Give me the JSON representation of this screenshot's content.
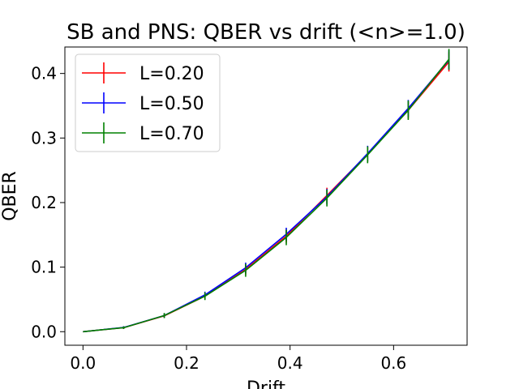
{
  "chart_data": {
    "type": "line",
    "title": "SB and PNS: QBER vs drift (<n>=1.0)",
    "xlabel": "Drift",
    "ylabel": "QBER",
    "xlim": [
      -0.035,
      0.742
    ],
    "ylim": [
      -0.021,
      0.441
    ],
    "xticks": [
      0.0,
      0.2,
      0.4,
      0.6
    ],
    "yticks": [
      0.0,
      0.1,
      0.2,
      0.3,
      0.4
    ],
    "xtick_labels": [
      "0.0",
      "0.2",
      "0.4",
      "0.6"
    ],
    "ytick_labels": [
      "0.0",
      "0.1",
      "0.2",
      "0.3",
      "0.4"
    ],
    "grid": false,
    "legend_position": "top-left",
    "x": [
      0.0,
      0.0785,
      0.157,
      0.2356,
      0.3142,
      0.3927,
      0.4712,
      0.5498,
      0.6283,
      0.7069
    ],
    "series": [
      {
        "name": "L=0.20",
        "color": "#ff0000",
        "values": [
          0.0,
          0.0062,
          0.0245,
          0.055,
          0.0965,
          0.148,
          0.211,
          0.275,
          0.343,
          0.418
        ],
        "errors": [
          0.0,
          0.002,
          0.003,
          0.005,
          0.008,
          0.01,
          0.012,
          0.012,
          0.013,
          0.015
        ]
      },
      {
        "name": "L=0.50",
        "color": "#0000ff",
        "values": [
          0.0,
          0.0065,
          0.025,
          0.057,
          0.099,
          0.151,
          0.209,
          0.276,
          0.346,
          0.421
        ],
        "errors": [
          0.0,
          0.002,
          0.003,
          0.005,
          0.008,
          0.01,
          0.012,
          0.012,
          0.013,
          0.015
        ]
      },
      {
        "name": "L=0.70",
        "color": "#008000",
        "values": [
          0.0,
          0.0062,
          0.025,
          0.055,
          0.095,
          0.146,
          0.207,
          0.274,
          0.343,
          0.422
        ],
        "errors": [
          0.0,
          0.002,
          0.004,
          0.006,
          0.01,
          0.012,
          0.013,
          0.013,
          0.015,
          0.016
        ]
      }
    ]
  }
}
